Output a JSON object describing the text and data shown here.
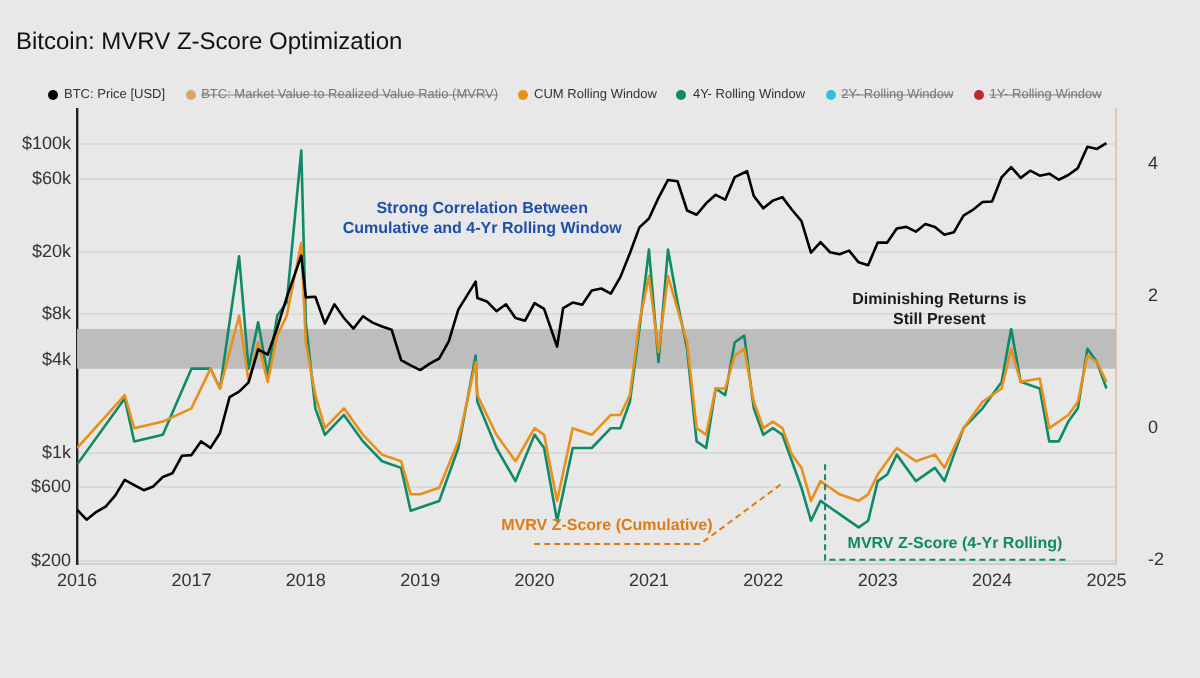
{
  "chart_data": {
    "type": "line",
    "title": "Bitcoin: MVRV Z-Score Optimization",
    "xlim": [
      "2016-01",
      "2025-02"
    ],
    "xticks": [
      "2016",
      "2017",
      "2018",
      "2019",
      "2020",
      "2021",
      "2022",
      "2023",
      "2024",
      "2025"
    ],
    "ylim": [
      190,
      170000
    ],
    "log": "y",
    "yticks": [
      {
        "value": 200,
        "label": "$200"
      },
      {
        "value": 600,
        "label": "$600"
      },
      {
        "value": 1000,
        "label": "$1k"
      },
      {
        "value": 4000,
        "label": "$4k"
      },
      {
        "value": 8000,
        "label": "$8k"
      },
      {
        "value": 20000,
        "label": "$20k"
      },
      {
        "value": 60000,
        "label": "$60k"
      },
      {
        "value": 100000,
        "label": "$100k"
      }
    ],
    "y2lim": [
      -2.06,
      4.83
    ],
    "y2ticks": [
      -2,
      0,
      2,
      4
    ],
    "grid": "y",
    "legend": "top",
    "marker": "none",
    "line_style": "solid",
    "bands": [
      {
        "axis": "y2",
        "from": 0.9,
        "to": 1.5,
        "color": "#bdbdbd"
      }
    ],
    "annotations": [
      "Strong Correlation Between Cumulative and 4-Yr Rolling Window",
      "Diminishing Returns is Still Present",
      "MVRV Z-Score (Cumulative)",
      "MVRV Z-Score (4-Yr Rolling)"
    ],
    "series": [
      {
        "name": "BTC: Price [USD]",
        "color": "#000000",
        "x": [
          "2016-01",
          "2016-02",
          "2016-03",
          "2016-04",
          "2016-05",
          "2016-06",
          "2016-07",
          "2016-08",
          "2016-09",
          "2016-10",
          "2016-11",
          "2016-12",
          "2017-01",
          "2017-02",
          "2017-03",
          "2017-04",
          "2017-05",
          "2017-06",
          "2017-07",
          "2017-08",
          "2017-09",
          "2017-10",
          "2017-11",
          "2017-12-17",
          "2018-01",
          "2018-02",
          "2018-03",
          "2018-04",
          "2018-05",
          "2018-06",
          "2018-07",
          "2018-08",
          "2018-09",
          "2018-10",
          "2018-11",
          "2018-12",
          "2019-01",
          "2019-02",
          "2019-03",
          "2019-04",
          "2019-05",
          "2019-06-26",
          "2019-07",
          "2019-08",
          "2019-09",
          "2019-10",
          "2019-11",
          "2019-12",
          "2020-01",
          "2020-02",
          "2020-03-12",
          "2020-04",
          "2020-05",
          "2020-06",
          "2020-07",
          "2020-08",
          "2020-09",
          "2020-10",
          "2020-11",
          "2020-12",
          "2021-01",
          "2021-02",
          "2021-03",
          "2021-04",
          "2021-05",
          "2021-06",
          "2021-07",
          "2021-08",
          "2021-09",
          "2021-10",
          "2021-11-10",
          "2021-12",
          "2022-01",
          "2022-02",
          "2022-03",
          "2022-04",
          "2022-05",
          "2022-06",
          "2022-07",
          "2022-08",
          "2022-09",
          "2022-10",
          "2022-11",
          "2022-12",
          "2023-01",
          "2023-02",
          "2023-03",
          "2023-04",
          "2023-05",
          "2023-06",
          "2023-07",
          "2023-08",
          "2023-09",
          "2023-10",
          "2023-11",
          "2023-12",
          "2024-01",
          "2024-02",
          "2024-03",
          "2024-04",
          "2024-05",
          "2024-06",
          "2024-07",
          "2024-08",
          "2024-09",
          "2024-10",
          "2024-11",
          "2024-12",
          "2025-01"
        ],
        "values": [
          430,
          370,
          415,
          450,
          530,
          670,
          620,
          575,
          608,
          700,
          740,
          960,
          970,
          1190,
          1080,
          1350,
          2300,
          2500,
          2870,
          4700,
          4340,
          6470,
          10200,
          19000,
          10200,
          10300,
          6900,
          9200,
          7500,
          6400,
          7700,
          7000,
          6600,
          6300,
          4000,
          3700,
          3450,
          3800,
          4100,
          5300,
          8500,
          12900,
          10100,
          9600,
          8300,
          9200,
          7500,
          7200,
          9350,
          8600,
          4900,
          8700,
          9450,
          9140,
          11300,
          11650,
          10780,
          13800,
          19700,
          29000,
          33100,
          45000,
          58800,
          57700,
          37300,
          35000,
          41500,
          47100,
          43800,
          61300,
          67000,
          46300,
          38500,
          43200,
          45500,
          37700,
          31800,
          19900,
          23300,
          20000,
          19400,
          20500,
          17200,
          16500,
          23100,
          23100,
          28500,
          29200,
          27200,
          30500,
          29200,
          26000,
          27000,
          34500,
          37700,
          42300,
          42600,
          61200,
          71300,
          60700,
          67500,
          62700,
          64600,
          59000,
          63300,
          70200,
          96400,
          93400,
          102000
        ]
      },
      {
        "name": "BTC: Market Value to Realized Value Ratio (MVRV)",
        "color": "#d9a66b"
      },
      {
        "name": "CUM Rolling Window",
        "color": "#e8901a",
        "axis": "y2",
        "x": [
          "2016-01",
          "2016-06",
          "2016-07",
          "2016-10",
          "2017-01",
          "2017-03",
          "2017-04",
          "2017-06",
          "2017-07",
          "2017-08",
          "2017-09",
          "2017-10",
          "2017-11",
          "2017-12-17",
          "2018-01",
          "2018-02",
          "2018-03",
          "2018-05",
          "2018-07",
          "2018-09",
          "2018-11",
          "2018-12",
          "2019-01",
          "2019-03",
          "2019-05",
          "2019-06-26",
          "2019-07",
          "2019-09",
          "2019-11",
          "2020-01",
          "2020-02",
          "2020-03-12",
          "2020-05",
          "2020-07",
          "2020-09",
          "2020-10",
          "2020-11",
          "2020-12",
          "2021-01",
          "2021-02",
          "2021-03",
          "2021-04",
          "2021-05",
          "2021-06",
          "2021-07",
          "2021-08",
          "2021-09",
          "2021-10",
          "2021-11",
          "2021-12",
          "2022-01",
          "2022-02",
          "2022-03",
          "2022-04",
          "2022-05",
          "2022-06",
          "2022-07",
          "2022-08",
          "2022-09",
          "2022-11",
          "2022-12",
          "2023-01",
          "2023-02",
          "2023-03",
          "2023-05",
          "2023-07",
          "2023-08",
          "2023-10",
          "2023-12",
          "2024-02",
          "2024-03",
          "2024-04",
          "2024-06",
          "2024-07",
          "2024-08",
          "2024-09",
          "2024-10",
          "2024-11",
          "2024-12",
          "2025-01"
        ],
        "values": [
          -0.3,
          0.5,
          0,
          0.1,
          0.3,
          0.9,
          0.6,
          1.7,
          0.7,
          1.3,
          0.7,
          1.4,
          1.7,
          2.8,
          1.3,
          0.5,
          0,
          0.3,
          -0.1,
          -0.4,
          -0.5,
          -1,
          -1,
          -0.9,
          -0.2,
          1,
          0.5,
          -0.1,
          -0.5,
          0,
          -0.1,
          -1.1,
          0,
          -0.1,
          0.2,
          0.2,
          0.5,
          1.6,
          2.3,
          1.15,
          2.3,
          1.8,
          1.3,
          0,
          -0.1,
          0.6,
          0.6,
          1.1,
          1.2,
          0.4,
          0,
          0.1,
          0,
          -0.4,
          -0.6,
          -1.1,
          -0.8,
          -0.9,
          -1,
          -1.1,
          -1,
          -0.7,
          -0.5,
          -0.3,
          -0.5,
          -0.4,
          -0.6,
          0,
          0.4,
          0.6,
          1.2,
          0.7,
          0.75,
          0,
          0.1,
          0.2,
          0.4,
          1.1,
          1,
          0.7
        ]
      },
      {
        "name": "4Y- Rolling Window",
        "color": "#0e8a68",
        "axis": "y2",
        "x": [
          "2016-01",
          "2016-06",
          "2016-07",
          "2016-10",
          "2017-01",
          "2017-03",
          "2017-04",
          "2017-06",
          "2017-07",
          "2017-08",
          "2017-09",
          "2017-10",
          "2017-11",
          "2017-12-17",
          "2018-01",
          "2018-02",
          "2018-03",
          "2018-05",
          "2018-07",
          "2018-09",
          "2018-11",
          "2018-12",
          "2019-01",
          "2019-03",
          "2019-05",
          "2019-06-26",
          "2019-07",
          "2019-09",
          "2019-11",
          "2020-01",
          "2020-02",
          "2020-03-12",
          "2020-05",
          "2020-07",
          "2020-09",
          "2020-10",
          "2020-11",
          "2020-12",
          "2021-01",
          "2021-02",
          "2021-03",
          "2021-04",
          "2021-05",
          "2021-06",
          "2021-07",
          "2021-08",
          "2021-09",
          "2021-10",
          "2021-11",
          "2021-12",
          "2022-01",
          "2022-02",
          "2022-03",
          "2022-04",
          "2022-05",
          "2022-06",
          "2022-07",
          "2022-08",
          "2022-09",
          "2022-11",
          "2022-12",
          "2023-01",
          "2023-02",
          "2023-03",
          "2023-05",
          "2023-07",
          "2023-08",
          "2023-10",
          "2023-12",
          "2024-02",
          "2024-03",
          "2024-04",
          "2024-06",
          "2024-07",
          "2024-08",
          "2024-09",
          "2024-10",
          "2024-11",
          "2024-12",
          "2025-01"
        ],
        "values": [
          -0.55,
          0.45,
          -0.2,
          -0.1,
          0.9,
          0.9,
          0.6,
          2.6,
          0.9,
          1.6,
          0.8,
          1.7,
          1.9,
          4.2,
          1.6,
          0.3,
          -0.1,
          0.2,
          -0.2,
          -0.5,
          -0.6,
          -1.25,
          -1.2,
          -1.1,
          -0.3,
          1.1,
          0.4,
          -0.3,
          -0.8,
          -0.1,
          -0.3,
          -1.4,
          -0.3,
          -0.3,
          0,
          0,
          0.4,
          1.5,
          2.7,
          1,
          2.7,
          1.9,
          1.2,
          -0.2,
          -0.3,
          0.6,
          0.5,
          1.3,
          1.4,
          0.3,
          -0.1,
          0,
          -0.1,
          -0.5,
          -0.9,
          -1.4,
          -1.1,
          -1.2,
          -1.3,
          -1.5,
          -1.4,
          -0.8,
          -0.7,
          -0.4,
          -0.8,
          -0.6,
          -0.8,
          0,
          0.3,
          0.7,
          1.5,
          0.7,
          0.6,
          -0.2,
          -0.2,
          0.1,
          0.3,
          1.2,
          1,
          0.6
        ]
      },
      {
        "name": "2Y- Rolling Window",
        "color": "#2ec4d6"
      },
      {
        "name": "1Y- Rolling Window",
        "color": "#c0282d"
      }
    ]
  }
}
